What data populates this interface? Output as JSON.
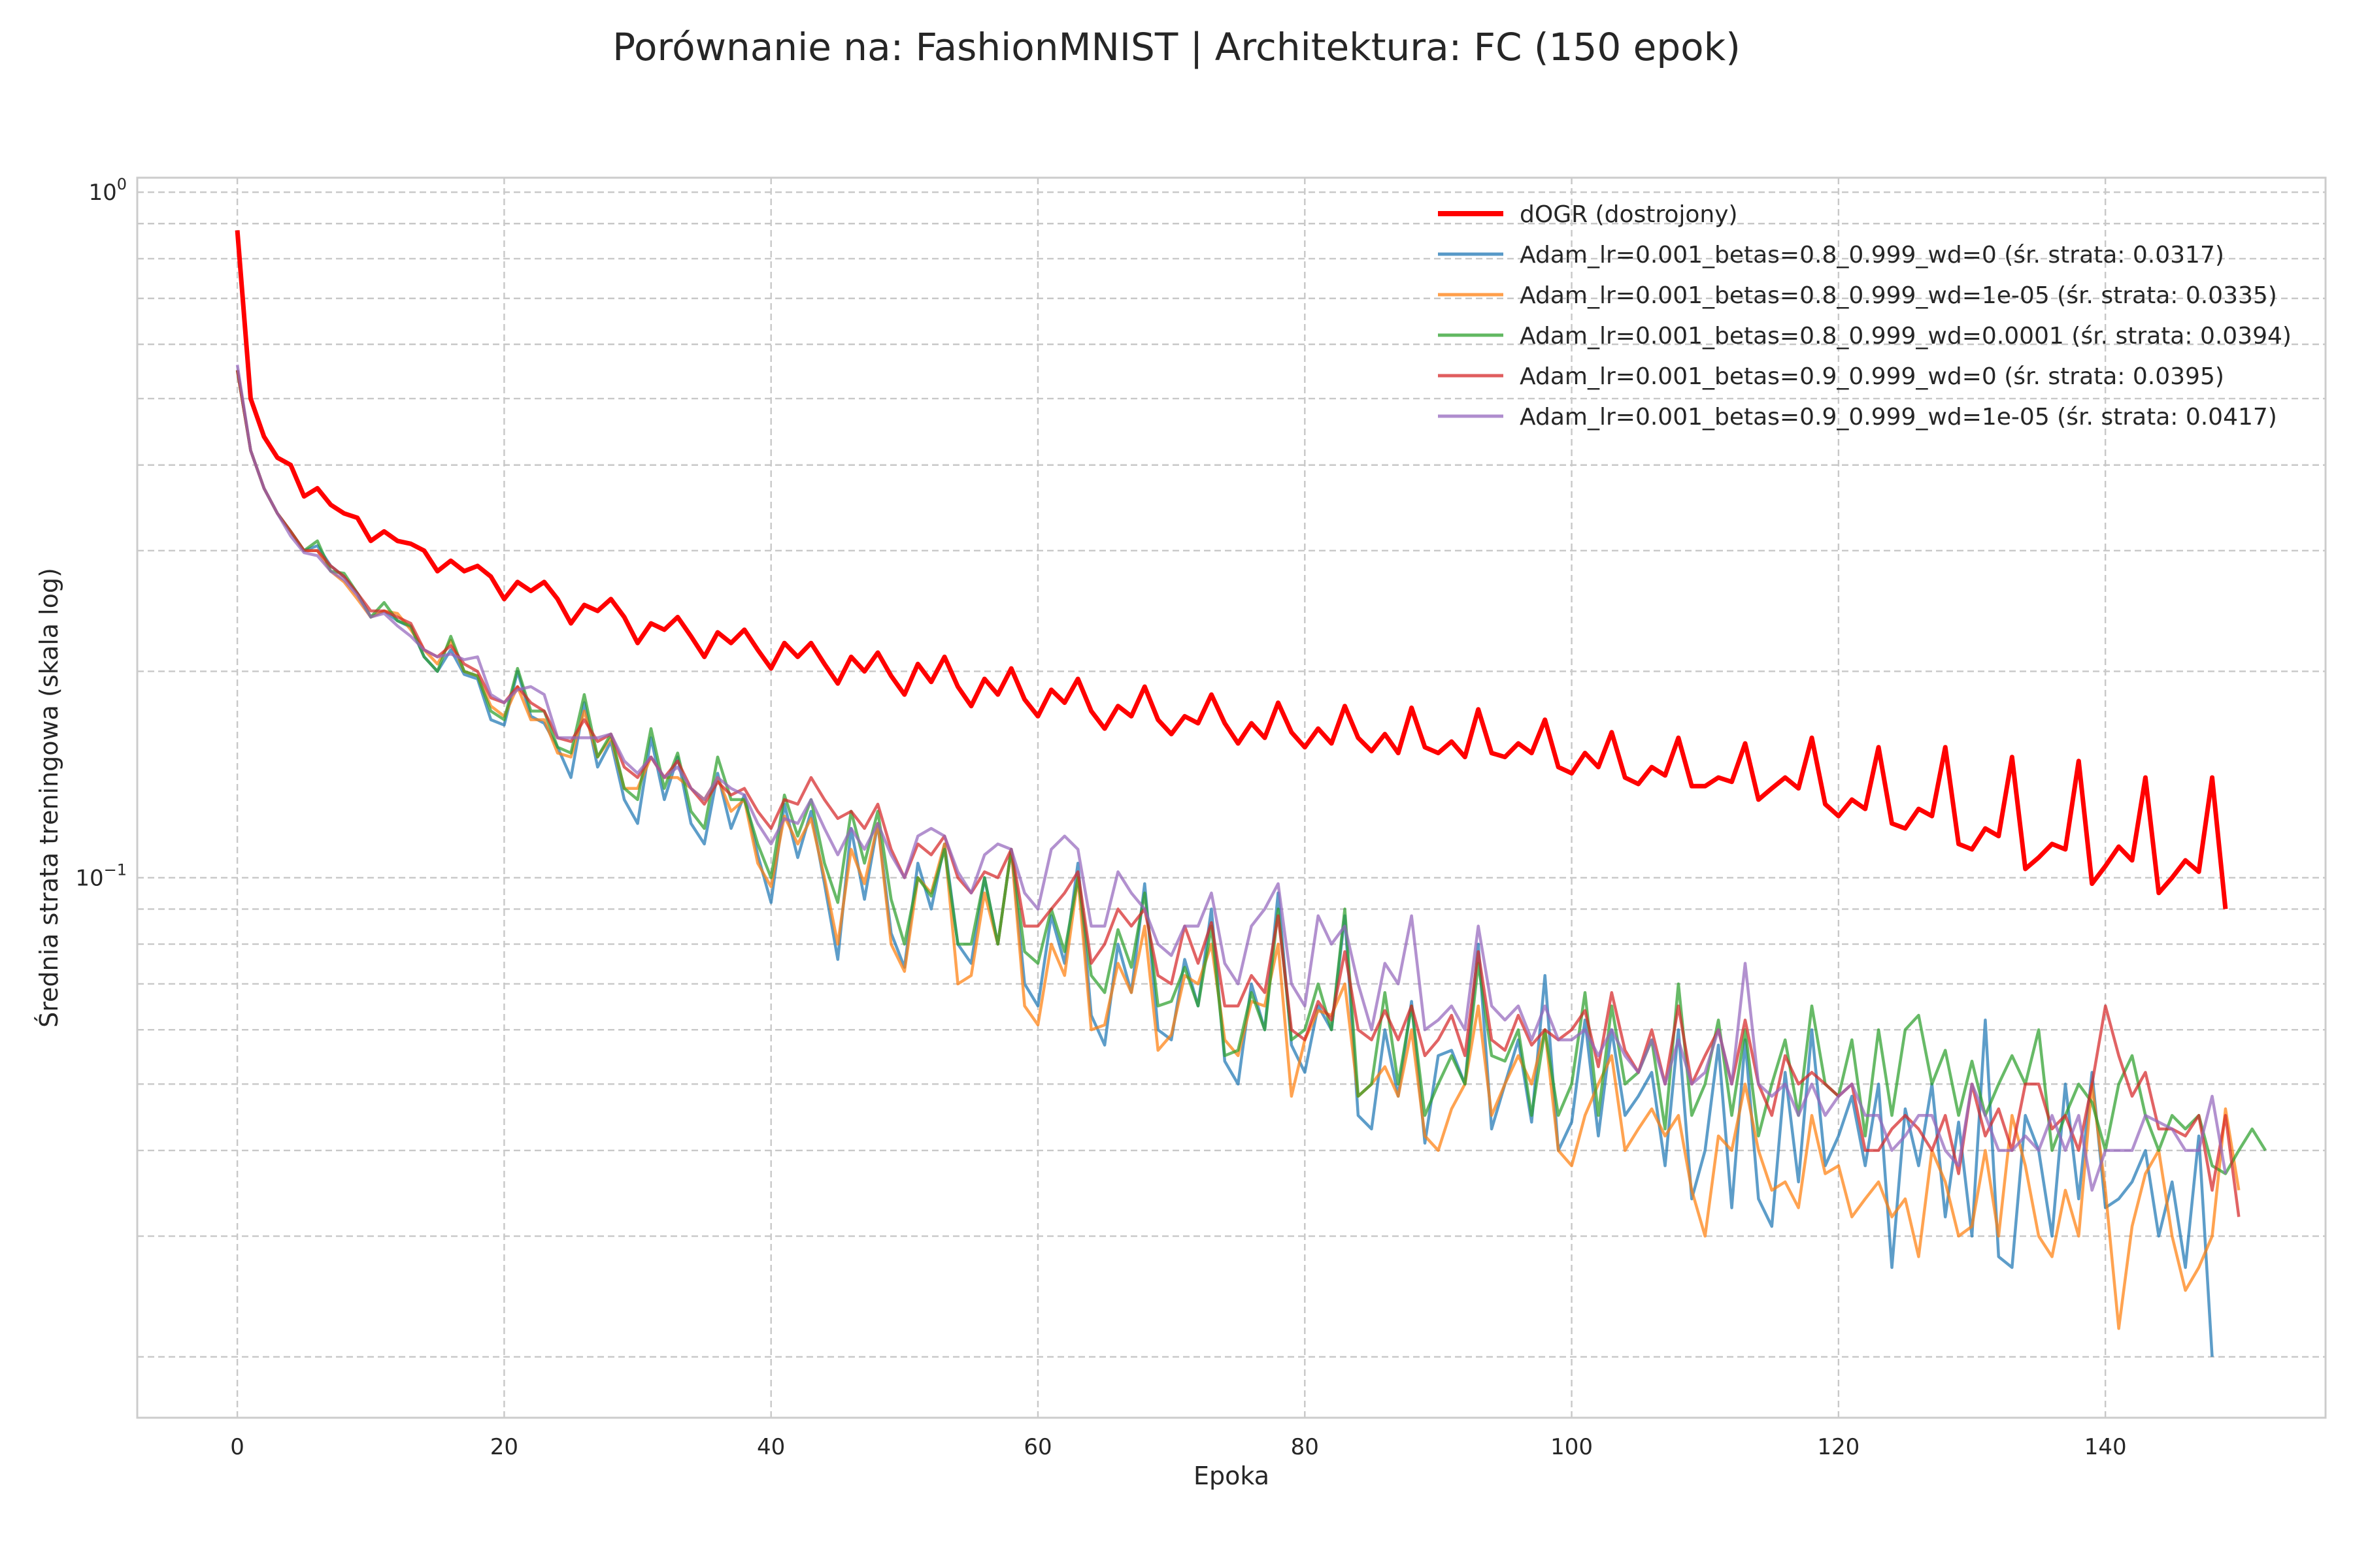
{
  "chart_data": {
    "type": "line",
    "title": "Porównanie na: FashionMNIST | Architektura: FC (150 epok)",
    "xlabel": "Epoka",
    "ylabel": "Średnia strata treningowa (skala log)",
    "x_scale": "linear",
    "y_scale": "log",
    "xlim": [
      -7.5,
      156.5
    ],
    "ylim": [
      0.0163,
      1.05
    ],
    "x_ticks": [
      0,
      20,
      40,
      60,
      80,
      100,
      120,
      140
    ],
    "x_tick_labels": [
      "0",
      "20",
      "40",
      "60",
      "80",
      "100",
      "120",
      "140"
    ],
    "y_major_ticks": [
      {
        "value": 1,
        "base": "10",
        "exp": "0"
      },
      {
        "value": 0.1,
        "base": "10",
        "exp": "−1"
      }
    ],
    "y_minor_ticks": [
      0.02,
      0.03,
      0.04,
      0.05,
      0.06,
      0.07,
      0.08,
      0.09,
      0.2,
      0.3,
      0.4,
      0.5,
      0.6,
      0.7,
      0.8,
      0.9
    ],
    "grid": true,
    "legend_position": "top-right",
    "series": [
      {
        "name": "dOGR (dostrojony)",
        "color": "#ff0000",
        "emphasis": true,
        "values": [
          0.88,
          0.5,
          0.44,
          0.41,
          0.4,
          0.36,
          0.37,
          0.35,
          0.34,
          0.335,
          0.31,
          0.32,
          0.31,
          0.307,
          0.3,
          0.28,
          0.29,
          0.28,
          0.285,
          0.275,
          0.255,
          0.27,
          0.262,
          0.27,
          0.255,
          0.235,
          0.25,
          0.245,
          0.255,
          0.24,
          0.22,
          0.235,
          0.23,
          0.24,
          0.225,
          0.21,
          0.228,
          0.22,
          0.23,
          0.215,
          0.202,
          0.22,
          0.21,
          0.22,
          0.205,
          0.192,
          0.21,
          0.2,
          0.213,
          0.197,
          0.185,
          0.205,
          0.193,
          0.21,
          0.19,
          0.178,
          0.195,
          0.185,
          0.202,
          0.182,
          0.172,
          0.188,
          0.18,
          0.195,
          0.175,
          0.165,
          0.178,
          0.172,
          0.19,
          0.17,
          0.162,
          0.172,
          0.168,
          0.185,
          0.168,
          0.157,
          0.168,
          0.16,
          0.18,
          0.163,
          0.155,
          0.165,
          0.157,
          0.178,
          0.16,
          0.153,
          0.162,
          0.152,
          0.177,
          0.155,
          0.152,
          0.158,
          0.15,
          0.176,
          0.152,
          0.15,
          0.157,
          0.152,
          0.17,
          0.145,
          0.142,
          0.152,
          0.145,
          0.163,
          0.14,
          0.137,
          0.145,
          0.141,
          0.16,
          0.136,
          0.136,
          0.14,
          0.138,
          0.157,
          0.13,
          0.135,
          0.14,
          0.135,
          0.16,
          0.128,
          0.123,
          0.13,
          0.126,
          0.155,
          0.12,
          0.118,
          0.126,
          0.123,
          0.155,
          0.112,
          0.11,
          0.118,
          0.115,
          0.15,
          0.103,
          0.107,
          0.112,
          0.11,
          0.148,
          0.098,
          0.104,
          0.111,
          0.106,
          0.14,
          0.095,
          0.1,
          0.106,
          0.102,
          0.14,
          0.09
        ]
      },
      {
        "name": "Adam_lr=0.001_betas=0.8_0.999_wd=0 (śr. strata: 0.0317)",
        "color": "#1f77b4",
        "emphasis": false,
        "values": [
          0.55,
          0.42,
          0.37,
          0.34,
          0.32,
          0.3,
          0.305,
          0.285,
          0.275,
          0.26,
          0.24,
          0.245,
          0.237,
          0.232,
          0.21,
          0.2,
          0.215,
          0.198,
          0.195,
          0.17,
          0.167,
          0.2,
          0.172,
          0.168,
          0.155,
          0.14,
          0.18,
          0.145,
          0.158,
          0.13,
          0.12,
          0.16,
          0.13,
          0.15,
          0.12,
          0.112,
          0.142,
          0.118,
          0.132,
          0.108,
          0.092,
          0.128,
          0.107,
          0.125,
          0.098,
          0.076,
          0.118,
          0.093,
          0.12,
          0.083,
          0.074,
          0.105,
          0.09,
          0.112,
          0.08,
          0.075,
          0.1,
          0.08,
          0.11,
          0.07,
          0.065,
          0.088,
          0.075,
          0.105,
          0.063,
          0.057,
          0.08,
          0.068,
          0.098,
          0.06,
          0.058,
          0.076,
          0.065,
          0.09,
          0.054,
          0.05,
          0.07,
          0.06,
          0.095,
          0.057,
          0.052,
          0.065,
          0.06,
          0.088,
          0.045,
          0.043,
          0.06,
          0.048,
          0.066,
          0.041,
          0.055,
          0.056,
          0.05,
          0.08,
          0.043,
          0.05,
          0.058,
          0.044,
          0.072,
          0.04,
          0.044,
          0.062,
          0.042,
          0.06,
          0.045,
          0.048,
          0.052,
          0.038,
          0.06,
          0.034,
          0.04,
          0.057,
          0.033,
          0.058,
          0.034,
          0.031,
          0.052,
          0.036,
          0.06,
          0.038,
          0.042,
          0.048,
          0.038,
          0.05,
          0.027,
          0.046,
          0.038,
          0.05,
          0.032,
          0.044,
          0.03,
          0.062,
          0.028,
          0.027,
          0.045,
          0.04,
          0.03,
          0.05,
          0.034,
          0.052,
          0.033,
          0.034,
          0.036,
          0.04,
          0.03,
          0.036,
          0.027,
          0.042,
          0.02
        ]
      },
      {
        "name": "Adam_lr=0.001_betas=0.8_0.999_wd=1e-05 (śr. strata: 0.0335)",
        "color": "#ff7f0e",
        "emphasis": false,
        "values": [
          0.55,
          0.42,
          0.37,
          0.34,
          0.32,
          0.3,
          0.3,
          0.28,
          0.27,
          0.255,
          0.24,
          0.245,
          0.243,
          0.23,
          0.215,
          0.205,
          0.222,
          0.2,
          0.197,
          0.178,
          0.172,
          0.19,
          0.17,
          0.17,
          0.152,
          0.15,
          0.175,
          0.15,
          0.16,
          0.135,
          0.135,
          0.15,
          0.14,
          0.14,
          0.135,
          0.13,
          0.14,
          0.125,
          0.13,
          0.105,
          0.097,
          0.123,
          0.112,
          0.122,
          0.1,
          0.08,
          0.11,
          0.098,
          0.12,
          0.08,
          0.073,
          0.1,
          0.095,
          0.112,
          0.07,
          0.072,
          0.095,
          0.08,
          0.11,
          0.065,
          0.061,
          0.08,
          0.072,
          0.1,
          0.06,
          0.061,
          0.075,
          0.068,
          0.085,
          0.056,
          0.059,
          0.072,
          0.07,
          0.08,
          0.058,
          0.055,
          0.066,
          0.065,
          0.08,
          0.048,
          0.058,
          0.064,
          0.063,
          0.07,
          0.048,
          0.05,
          0.053,
          0.048,
          0.06,
          0.042,
          0.04,
          0.046,
          0.05,
          0.065,
          0.045,
          0.05,
          0.055,
          0.05,
          0.06,
          0.04,
          0.038,
          0.045,
          0.05,
          0.055,
          0.04,
          0.043,
          0.046,
          0.042,
          0.045,
          0.035,
          0.03,
          0.042,
          0.04,
          0.05,
          0.04,
          0.035,
          0.036,
          0.033,
          0.045,
          0.037,
          0.038,
          0.032,
          0.034,
          0.036,
          0.032,
          0.034,
          0.028,
          0.04,
          0.036,
          0.03,
          0.031,
          0.04,
          0.03,
          0.045,
          0.038,
          0.03,
          0.028,
          0.035,
          0.03,
          0.05,
          0.035,
          0.022,
          0.031,
          0.037,
          0.04,
          0.03,
          0.025,
          0.027,
          0.03,
          0.046,
          0.035
        ]
      },
      {
        "name": "Adam_lr=0.001_betas=0.8_0.999_wd=0.0001 (śr. strata: 0.0394)",
        "color": "#2ca02c",
        "emphasis": false,
        "values": [
          0.55,
          0.42,
          0.37,
          0.34,
          0.32,
          0.3,
          0.31,
          0.28,
          0.278,
          0.26,
          0.24,
          0.252,
          0.237,
          0.233,
          0.21,
          0.2,
          0.225,
          0.2,
          0.197,
          0.175,
          0.17,
          0.202,
          0.175,
          0.175,
          0.155,
          0.152,
          0.185,
          0.15,
          0.162,
          0.135,
          0.13,
          0.165,
          0.135,
          0.152,
          0.125,
          0.118,
          0.15,
          0.13,
          0.13,
          0.112,
          0.1,
          0.132,
          0.115,
          0.13,
          0.105,
          0.092,
          0.125,
          0.105,
          0.125,
          0.093,
          0.08,
          0.1,
          0.094,
          0.11,
          0.08,
          0.08,
          0.1,
          0.08,
          0.11,
          0.078,
          0.075,
          0.09,
          0.078,
          0.1,
          0.072,
          0.068,
          0.084,
          0.074,
          0.095,
          0.065,
          0.066,
          0.074,
          0.065,
          0.085,
          0.055,
          0.056,
          0.068,
          0.06,
          0.09,
          0.058,
          0.06,
          0.07,
          0.06,
          0.09,
          0.048,
          0.05,
          0.068,
          0.05,
          0.065,
          0.045,
          0.05,
          0.055,
          0.05,
          0.075,
          0.055,
          0.054,
          0.06,
          0.045,
          0.06,
          0.045,
          0.05,
          0.068,
          0.045,
          0.065,
          0.05,
          0.052,
          0.058,
          0.043,
          0.07,
          0.045,
          0.05,
          0.062,
          0.045,
          0.06,
          0.042,
          0.05,
          0.058,
          0.045,
          0.065,
          0.05,
          0.048,
          0.058,
          0.042,
          0.06,
          0.045,
          0.06,
          0.063,
          0.05,
          0.056,
          0.045,
          0.054,
          0.045,
          0.05,
          0.055,
          0.05,
          0.06,
          0.04,
          0.045,
          0.05,
          0.047,
          0.04,
          0.05,
          0.055,
          0.045,
          0.04,
          0.045,
          0.043,
          0.045,
          0.038,
          0.037,
          0.04,
          0.043,
          0.04
        ]
      },
      {
        "name": "Adam_lr=0.001_betas=0.9_0.999_wd=0 (śr. strata: 0.0395)",
        "color": "#d62728",
        "emphasis": false,
        "values": [
          0.55,
          0.42,
          0.37,
          0.34,
          0.32,
          0.3,
          0.3,
          0.285,
          0.275,
          0.26,
          0.245,
          0.245,
          0.24,
          0.235,
          0.215,
          0.21,
          0.218,
          0.205,
          0.2,
          0.183,
          0.18,
          0.19,
          0.18,
          0.175,
          0.16,
          0.158,
          0.17,
          0.158,
          0.162,
          0.145,
          0.14,
          0.15,
          0.14,
          0.148,
          0.135,
          0.128,
          0.138,
          0.132,
          0.135,
          0.125,
          0.118,
          0.13,
          0.128,
          0.14,
          0.13,
          0.122,
          0.125,
          0.118,
          0.128,
          0.11,
          0.1,
          0.112,
          0.108,
          0.115,
          0.1,
          0.095,
          0.102,
          0.1,
          0.11,
          0.085,
          0.085,
          0.09,
          0.095,
          0.102,
          0.075,
          0.08,
          0.09,
          0.085,
          0.09,
          0.072,
          0.07,
          0.085,
          0.075,
          0.086,
          0.065,
          0.065,
          0.072,
          0.068,
          0.088,
          0.06,
          0.058,
          0.066,
          0.062,
          0.078,
          0.06,
          0.058,
          0.064,
          0.058,
          0.065,
          0.055,
          0.058,
          0.063,
          0.055,
          0.078,
          0.058,
          0.056,
          0.063,
          0.057,
          0.06,
          0.058,
          0.06,
          0.064,
          0.053,
          0.068,
          0.056,
          0.052,
          0.06,
          0.05,
          0.065,
          0.05,
          0.055,
          0.06,
          0.05,
          0.062,
          0.05,
          0.045,
          0.055,
          0.05,
          0.052,
          0.05,
          0.048,
          0.05,
          0.04,
          0.04,
          0.043,
          0.045,
          0.043,
          0.04,
          0.045,
          0.037,
          0.05,
          0.042,
          0.046,
          0.04,
          0.05,
          0.05,
          0.043,
          0.045,
          0.04,
          0.05,
          0.065,
          0.055,
          0.048,
          0.052,
          0.043,
          0.043,
          0.042,
          0.045,
          0.035,
          0.045,
          0.032
        ]
      },
      {
        "name": "Adam_lr=0.001_betas=0.9_0.999_wd=1e-05 (śr. strata: 0.0417)",
        "color": "#9467bd",
        "emphasis": false,
        "values": [
          0.56,
          0.42,
          0.37,
          0.34,
          0.315,
          0.298,
          0.295,
          0.28,
          0.272,
          0.258,
          0.24,
          0.243,
          0.233,
          0.225,
          0.215,
          0.21,
          0.212,
          0.208,
          0.21,
          0.185,
          0.18,
          0.188,
          0.19,
          0.185,
          0.16,
          0.16,
          0.16,
          0.16,
          0.162,
          0.148,
          0.142,
          0.15,
          0.14,
          0.145,
          0.135,
          0.13,
          0.14,
          0.135,
          0.132,
          0.12,
          0.112,
          0.122,
          0.12,
          0.13,
          0.118,
          0.108,
          0.118,
          0.11,
          0.12,
          0.108,
          0.1,
          0.115,
          0.118,
          0.115,
          0.102,
          0.095,
          0.108,
          0.112,
          0.11,
          0.095,
          0.09,
          0.11,
          0.115,
          0.11,
          0.085,
          0.085,
          0.102,
          0.095,
          0.09,
          0.08,
          0.077,
          0.085,
          0.085,
          0.095,
          0.075,
          0.07,
          0.085,
          0.09,
          0.098,
          0.07,
          0.065,
          0.088,
          0.08,
          0.085,
          0.07,
          0.06,
          0.075,
          0.07,
          0.088,
          0.06,
          0.062,
          0.065,
          0.06,
          0.085,
          0.065,
          0.062,
          0.065,
          0.058,
          0.065,
          0.058,
          0.058,
          0.06,
          0.055,
          0.06,
          0.055,
          0.052,
          0.058,
          0.05,
          0.058,
          0.05,
          0.052,
          0.06,
          0.05,
          0.075,
          0.05,
          0.048,
          0.05,
          0.045,
          0.05,
          0.045,
          0.048,
          0.05,
          0.045,
          0.045,
          0.04,
          0.042,
          0.045,
          0.045,
          0.04,
          0.038,
          0.05,
          0.045,
          0.04,
          0.04,
          0.042,
          0.04,
          0.045,
          0.04,
          0.045,
          0.035,
          0.04,
          0.04,
          0.04,
          0.045,
          0.044,
          0.043,
          0.04,
          0.04,
          0.048,
          0.037
        ]
      }
    ]
  }
}
